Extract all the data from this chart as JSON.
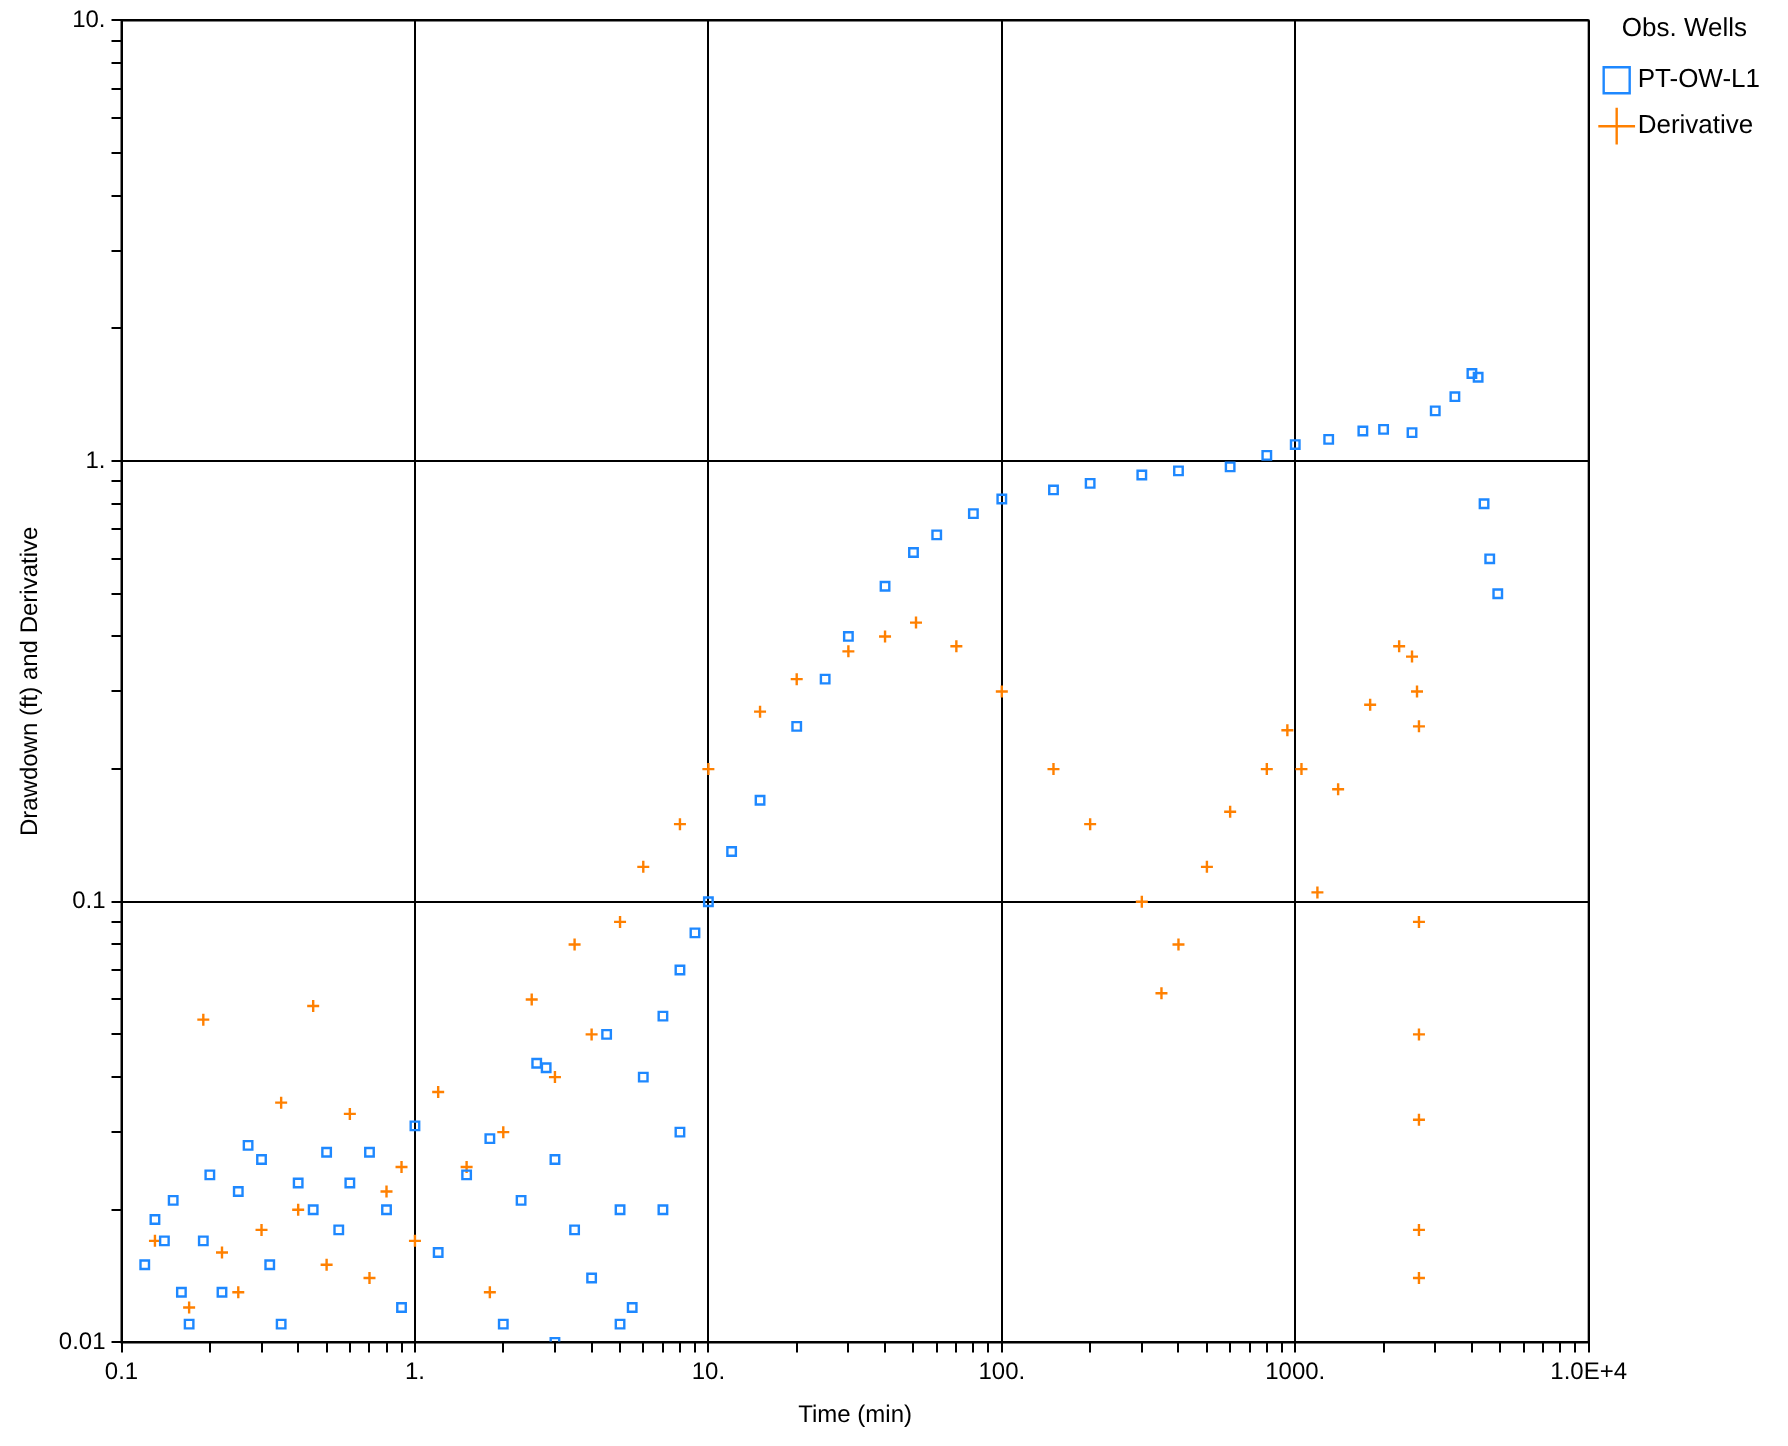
{
  "chart_data": {
    "type": "scatter",
    "xlabel": "Time (min)",
    "ylabel": "Drawdown (ft) and Derivative",
    "legend_title": "Obs. Wells",
    "log": "xy",
    "grid": true,
    "legend": "top right",
    "xlim": [
      0.1,
      10000
    ],
    "ylim": [
      0.01,
      10
    ],
    "xticks": [
      0.1,
      {
        "value": 0.2,
        "label": null
      },
      {
        "value": 0.3,
        "label": null
      },
      {
        "value": 0.4,
        "label": null
      },
      {
        "value": 0.5,
        "label": null
      },
      {
        "value": 0.6,
        "label": null
      },
      {
        "value": 0.7,
        "label": null
      },
      {
        "value": 0.8,
        "label": null
      },
      {
        "value": 0.9,
        "label": null
      },
      {
        "value": 1,
        "label": "1."
      },
      {
        "value": 2,
        "label": null
      },
      {
        "value": 3,
        "label": null
      },
      {
        "value": 4,
        "label": null
      },
      {
        "value": 5,
        "label": null
      },
      {
        "value": 6,
        "label": null
      },
      {
        "value": 7,
        "label": null
      },
      {
        "value": 8,
        "label": null
      },
      {
        "value": 9,
        "label": null
      },
      {
        "value": 10,
        "label": "10."
      },
      {
        "value": 20,
        "label": null
      },
      {
        "value": 30,
        "label": null
      },
      {
        "value": 40,
        "label": null
      },
      {
        "value": 50,
        "label": null
      },
      {
        "value": 60,
        "label": null
      },
      {
        "value": 70,
        "label": null
      },
      {
        "value": 80,
        "label": null
      },
      {
        "value": 90,
        "label": null
      },
      {
        "value": 100,
        "label": "100."
      },
      {
        "value": 200,
        "label": null
      },
      {
        "value": 300,
        "label": null
      },
      {
        "value": 400,
        "label": null
      },
      {
        "value": 500,
        "label": null
      },
      {
        "value": 600,
        "label": null
      },
      {
        "value": 700,
        "label": null
      },
      {
        "value": 800,
        "label": null
      },
      {
        "value": 900,
        "label": null
      },
      {
        "value": 1000,
        "label": "1000."
      },
      {
        "value": 2000,
        "label": null
      },
      {
        "value": 3000,
        "label": null
      },
      {
        "value": 4000,
        "label": null
      },
      {
        "value": 5000,
        "label": null
      },
      {
        "value": 6000,
        "label": null
      },
      {
        "value": 7000,
        "label": null
      },
      {
        "value": 8000,
        "label": null
      },
      {
        "value": 9000,
        "label": null
      },
      {
        "value": 10000,
        "label": "1.0E+4"
      }
    ],
    "yticks": [
      0.01,
      {
        "value": 0.02,
        "label": null
      },
      {
        "value": 0.03,
        "label": null
      },
      {
        "value": 0.04,
        "label": null
      },
      {
        "value": 0.05,
        "label": null
      },
      {
        "value": 0.06,
        "label": null
      },
      {
        "value": 0.07,
        "label": null
      },
      {
        "value": 0.08,
        "label": null
      },
      {
        "value": 0.09,
        "label": null
      },
      0.1,
      {
        "value": 0.2,
        "label": null
      },
      {
        "value": 0.3,
        "label": null
      },
      {
        "value": 0.4,
        "label": null
      },
      {
        "value": 0.5,
        "label": null
      },
      {
        "value": 0.6,
        "label": null
      },
      {
        "value": 0.7,
        "label": null
      },
      {
        "value": 0.8,
        "label": null
      },
      {
        "value": 0.9,
        "label": null
      },
      {
        "value": 1,
        "label": "1."
      },
      {
        "value": 2,
        "label": null
      },
      {
        "value": 3,
        "label": null
      },
      {
        "value": 4,
        "label": null
      },
      {
        "value": 5,
        "label": null
      },
      {
        "value": 6,
        "label": null
      },
      {
        "value": 7,
        "label": null
      },
      {
        "value": 8,
        "label": null
      },
      {
        "value": 9,
        "label": null
      },
      {
        "value": 10,
        "label": "10."
      }
    ],
    "series": [
      {
        "name": "PT-OW-L1",
        "color": "#1e88ff",
        "marker": "square",
        "x": [
          0.12,
          0.13,
          0.14,
          0.15,
          0.16,
          0.17,
          0.19,
          0.2,
          0.22,
          0.25,
          0.27,
          0.3,
          0.32,
          0.35,
          0.4,
          0.45,
          0.5,
          0.55,
          0.6,
          0.7,
          0.8,
          0.9,
          1,
          1.2,
          1.5,
          1.8,
          2,
          2.3,
          2.6,
          2.8,
          3,
          3,
          3.5,
          4,
          4.5,
          5,
          5,
          5.5,
          6,
          7,
          7,
          8,
          8,
          9,
          10,
          12,
          15,
          20,
          25,
          30,
          40,
          50,
          60,
          80,
          100,
          150,
          200,
          300,
          400,
          600,
          800,
          1000,
          1300,
          1700,
          2000,
          2500,
          3000,
          3500,
          4000,
          4200,
          4400,
          4600,
          4900
        ],
        "values": [
          0.015,
          0.019,
          0.017,
          0.021,
          0.013,
          0.011,
          0.017,
          0.024,
          0.013,
          0.022,
          0.028,
          0.026,
          0.015,
          0.011,
          0.023,
          0.02,
          0.027,
          0.018,
          0.023,
          0.027,
          0.02,
          0.012,
          0.031,
          0.016,
          0.024,
          0.029,
          0.011,
          0.021,
          0.043,
          0.042,
          0.026,
          0.01,
          0.018,
          0.014,
          0.05,
          0.02,
          0.011,
          0.012,
          0.04,
          0.055,
          0.02,
          0.07,
          0.03,
          0.085,
          0.1,
          0.13,
          0.17,
          0.25,
          0.32,
          0.4,
          0.52,
          0.62,
          0.68,
          0.76,
          0.82,
          0.86,
          0.89,
          0.93,
          0.95,
          0.97,
          1.03,
          1.09,
          1.12,
          1.17,
          1.18,
          1.16,
          1.3,
          1.4,
          1.58,
          1.55,
          0.8,
          0.6,
          0.5
        ]
      },
      {
        "name": "Derivative",
        "color": "#ff8000",
        "marker": "cross",
        "x": [
          0.13,
          0.17,
          0.19,
          0.22,
          0.25,
          0.3,
          0.35,
          0.4,
          0.45,
          0.5,
          0.6,
          0.7,
          0.8,
          0.9,
          1,
          1.2,
          1.5,
          1.8,
          2,
          2.5,
          3,
          3.5,
          4,
          5,
          6,
          8,
          10,
          15,
          20,
          30,
          40,
          51,
          70,
          100,
          150,
          200,
          300,
          350,
          400,
          500,
          600,
          800,
          940,
          1050,
          1190,
          1400,
          1800,
          2260,
          2500,
          2600,
          2640,
          2640,
          2640,
          2640,
          2640,
          2640
        ],
        "values": [
          0.017,
          0.012,
          0.054,
          0.016,
          0.013,
          0.018,
          0.035,
          0.02,
          0.058,
          0.015,
          0.033,
          0.014,
          0.022,
          0.025,
          0.017,
          0.037,
          0.025,
          0.013,
          0.03,
          0.06,
          0.04,
          0.08,
          0.05,
          0.09,
          0.12,
          0.15,
          0.2,
          0.27,
          0.32,
          0.37,
          0.4,
          0.43,
          0.38,
          0.3,
          0.2,
          0.15,
          0.1,
          0.062,
          0.08,
          0.12,
          0.16,
          0.2,
          0.245,
          0.2,
          0.105,
          0.18,
          0.28,
          0.38,
          0.36,
          0.3,
          0.25,
          0.09,
          0.05,
          0.032,
          0.018,
          0.014
        ]
      }
    ]
  }
}
